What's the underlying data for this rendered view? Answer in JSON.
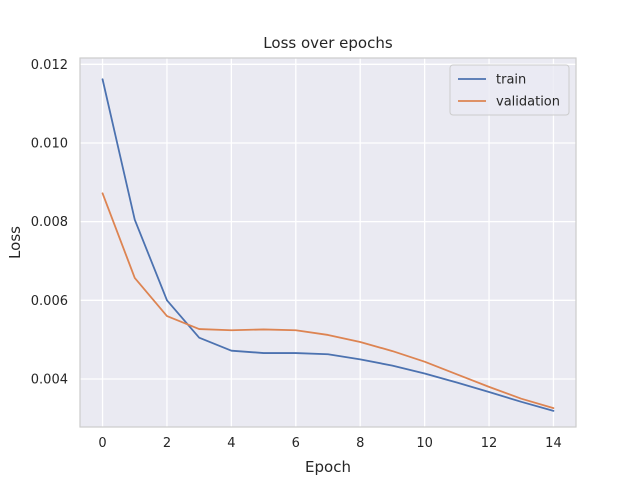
{
  "chart_data": {
    "type": "line",
    "title": "Loss over epochs",
    "xlabel": "Epoch",
    "ylabel": "Loss",
    "xlim": [
      -0.7,
      14.7
    ],
    "ylim": [
      0.00278,
      0.01216
    ],
    "x_ticks": [
      0,
      2,
      4,
      6,
      8,
      10,
      12,
      14
    ],
    "y_ticks": [
      0.004,
      0.006,
      0.008,
      0.01,
      0.012
    ],
    "x_tick_labels": [
      "0",
      "2",
      "4",
      "6",
      "8",
      "10",
      "12",
      "14"
    ],
    "y_tick_labels": [
      "0.004",
      "0.006",
      "0.008",
      "0.010",
      "0.012"
    ],
    "grid": true,
    "legend_position": "top-right",
    "x": [
      0,
      1,
      2,
      3,
      4,
      5,
      6,
      7,
      8,
      9,
      10,
      11,
      12,
      13,
      14
    ],
    "series": [
      {
        "name": "train",
        "color": "#4c72b0",
        "values": [
          0.01162,
          0.00805,
          0.006,
          0.00505,
          0.00472,
          0.00466,
          0.00466,
          0.00463,
          0.0045,
          0.00434,
          0.00414,
          0.00391,
          0.00367,
          0.00342,
          0.00319
        ]
      },
      {
        "name": "validation",
        "color": "#dd8452",
        "values": [
          0.00872,
          0.00657,
          0.0056,
          0.00527,
          0.00524,
          0.00526,
          0.00524,
          0.00512,
          0.00494,
          0.00471,
          0.00444,
          0.00412,
          0.0038,
          0.0035,
          0.00326
        ]
      }
    ]
  }
}
